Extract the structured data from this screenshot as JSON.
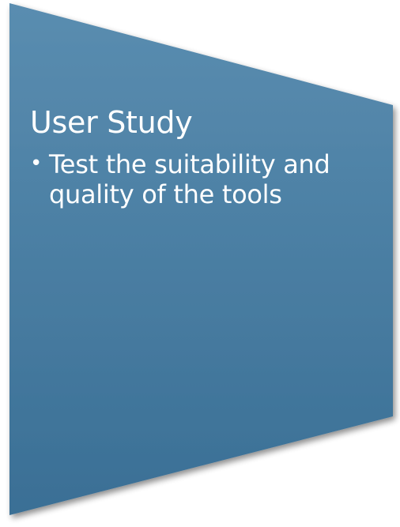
{
  "panel": {
    "title": "User Study",
    "bullets": [
      {
        "text": "Test the suitability and quality of the tools"
      }
    ],
    "colors": {
      "fill_top": "#5a8db0",
      "fill_bottom": "#3a6f95",
      "text": "#ffffff"
    }
  }
}
